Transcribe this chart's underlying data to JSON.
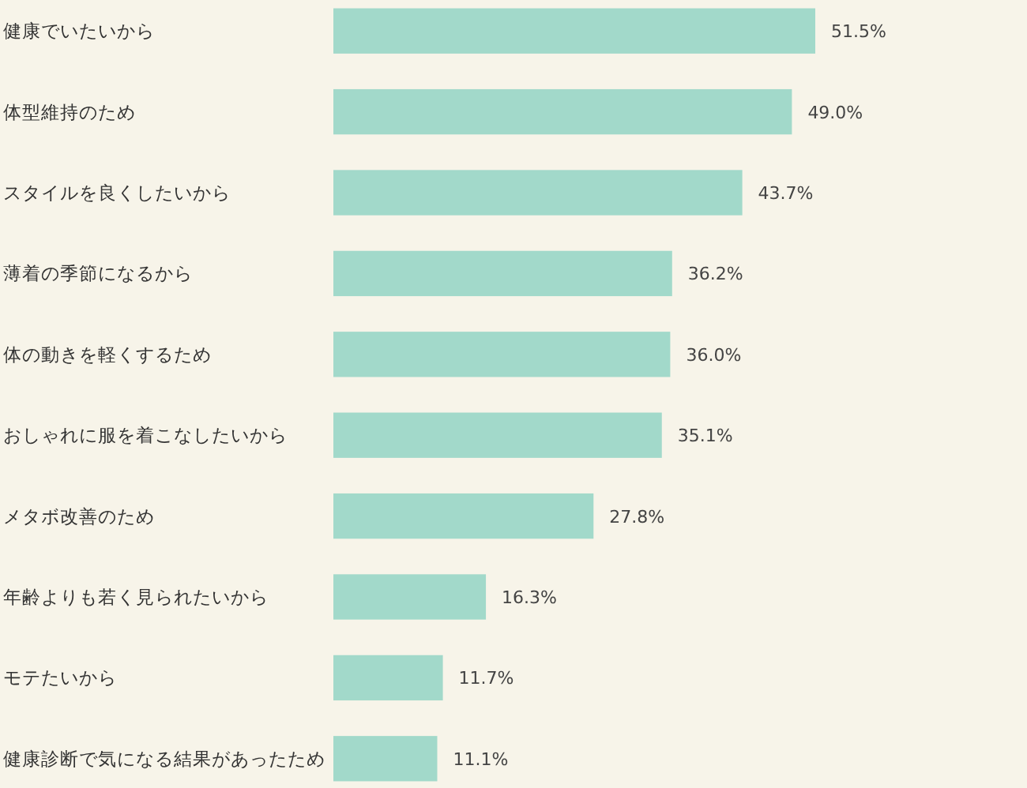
{
  "chart_data": {
    "type": "bar",
    "orientation": "horizontal",
    "categories": [
      "健康でいたいから",
      "体型維持のため",
      "スタイルを良くしたいから",
      "薄着の季節になるから",
      "体の動きを軽くするため",
      "おしゃれに服を着こなしたいから",
      "メタボ改善のため",
      "年齢よりも若く見られたいから",
      "モテたいから",
      "健康診断で気になる結果があったため"
    ],
    "values": [
      51.5,
      49.0,
      43.7,
      36.2,
      36.0,
      35.1,
      27.8,
      16.3,
      11.7,
      11.1
    ],
    "value_labels": [
      "51.5%",
      "49.0%",
      "43.7%",
      "36.2%",
      "36.0%",
      "35.1%",
      "27.8%",
      "16.3%",
      "11.7%",
      "11.1%"
    ],
    "color": "#a2d9ca"
  }
}
